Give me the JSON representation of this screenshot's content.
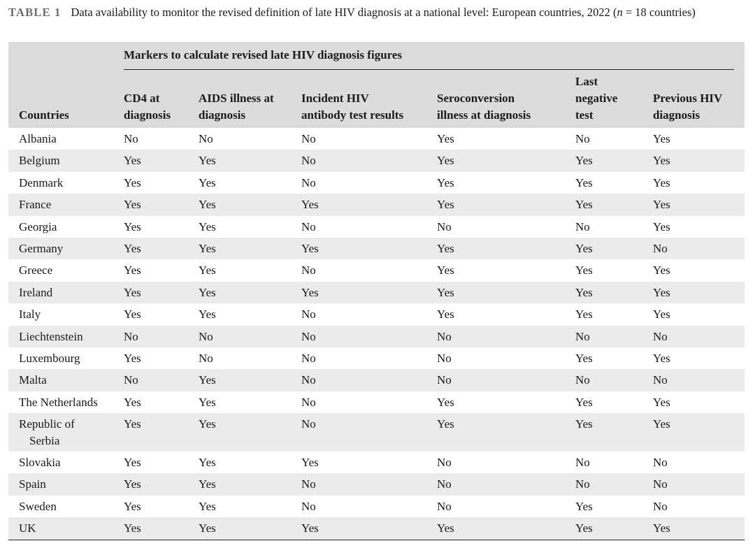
{
  "caption": {
    "label": "TABLE 1",
    "text_before_n": "Data availability to monitor the revised definition of late HIV diagnosis at a national level: European countries, 2022 (",
    "n_symbol": "n",
    "text_after_n": " = 18 countries)"
  },
  "header": {
    "spanner": "Markers to calculate revised late HIV diagnosis figures",
    "countries": "Countries",
    "columns": [
      [
        "CD4 at",
        "diagnosis"
      ],
      [
        "AIDS illness at",
        "diagnosis"
      ],
      [
        "Incident HIV",
        "antibody test results"
      ],
      [
        "Seroconversion",
        "illness at diagnosis"
      ],
      [
        "Last",
        "negative",
        "test"
      ],
      [
        "Previous HIV",
        "diagnosis"
      ]
    ]
  },
  "rows": [
    {
      "country": "Albania",
      "values": [
        "No",
        "No",
        "No",
        "Yes",
        "No",
        "Yes"
      ]
    },
    {
      "country": "Belgium",
      "values": [
        "Yes",
        "Yes",
        "No",
        "Yes",
        "Yes",
        "Yes"
      ]
    },
    {
      "country": "Denmark",
      "values": [
        "Yes",
        "Yes",
        "No",
        "Yes",
        "Yes",
        "Yes"
      ]
    },
    {
      "country": "France",
      "values": [
        "Yes",
        "Yes",
        "Yes",
        "Yes",
        "Yes",
        "Yes"
      ]
    },
    {
      "country": "Georgia",
      "values": [
        "Yes",
        "Yes",
        "No",
        "No",
        "No",
        "Yes"
      ]
    },
    {
      "country": "Germany",
      "values": [
        "Yes",
        "Yes",
        "Yes",
        "Yes",
        "Yes",
        "No"
      ]
    },
    {
      "country": "Greece",
      "values": [
        "Yes",
        "Yes",
        "No",
        "Yes",
        "Yes",
        "Yes"
      ]
    },
    {
      "country": "Ireland",
      "values": [
        "Yes",
        "Yes",
        "Yes",
        "Yes",
        "Yes",
        "Yes"
      ]
    },
    {
      "country": "Italy",
      "values": [
        "Yes",
        "Yes",
        "No",
        "Yes",
        "Yes",
        "Yes"
      ]
    },
    {
      "country": "Liechtenstein",
      "values": [
        "No",
        "No",
        "No",
        "No",
        "No",
        "No"
      ]
    },
    {
      "country": "Luxembourg",
      "values": [
        "Yes",
        "No",
        "No",
        "No",
        "Yes",
        "Yes"
      ]
    },
    {
      "country": "Malta",
      "values": [
        "No",
        "Yes",
        "No",
        "No",
        "No",
        "No"
      ]
    },
    {
      "country": "The Netherlands",
      "values": [
        "Yes",
        "Yes",
        "No",
        "Yes",
        "Yes",
        "Yes"
      ]
    },
    {
      "country": [
        "Republic of",
        "Serbia"
      ],
      "values": [
        "Yes",
        "Yes",
        "No",
        "Yes",
        "Yes",
        "Yes"
      ]
    },
    {
      "country": "Slovakia",
      "values": [
        "Yes",
        "Yes",
        "Yes",
        "No",
        "No",
        "No"
      ]
    },
    {
      "country": "Spain",
      "values": [
        "Yes",
        "Yes",
        "No",
        "No",
        "No",
        "No"
      ]
    },
    {
      "country": "Sweden",
      "values": [
        "Yes",
        "Yes",
        "No",
        "No",
        "Yes",
        "No"
      ]
    },
    {
      "country": "UK",
      "values": [
        "Yes",
        "Yes",
        "Yes",
        "Yes",
        "Yes",
        "Yes"
      ]
    }
  ]
}
